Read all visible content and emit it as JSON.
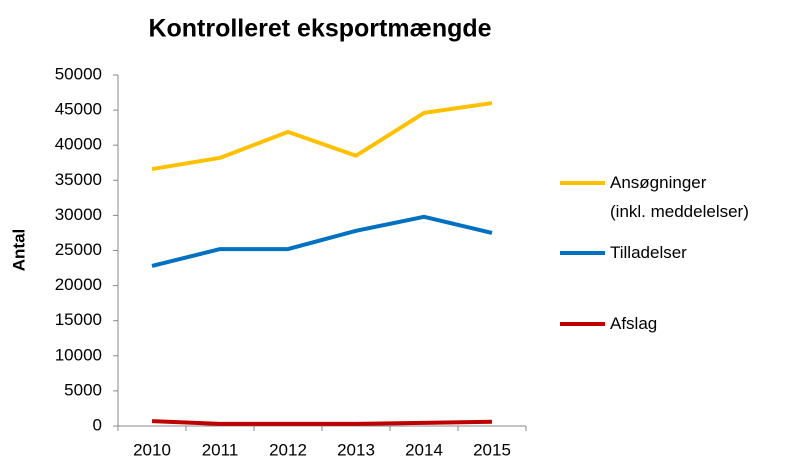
{
  "chart_data": {
    "type": "line",
    "title": "Kontrolleret eksportmængde",
    "y_label": "Antal",
    "categories": [
      "2010",
      "2011",
      "2012",
      "2013",
      "2014",
      "2015"
    ],
    "series": [
      {
        "name": "Ansøgninger\n(inkl. meddelelser)",
        "color": "#ffc000",
        "values": [
          36600,
          38200,
          41900,
          38500,
          44600,
          46000
        ]
      },
      {
        "name": "Tilladelser",
        "color": "#0070c0",
        "values": [
          22800,
          25200,
          25200,
          27800,
          29800,
          27500
        ]
      },
      {
        "name": "Afslag",
        "color": "#c00000",
        "values": [
          700,
          300,
          300,
          300,
          450,
          600
        ]
      }
    ],
    "ylim": [
      0,
      50000
    ],
    "yticks": [
      0,
      5000,
      10000,
      15000,
      20000,
      25000,
      30000,
      35000,
      40000,
      45000,
      50000
    ],
    "grid": false,
    "legend": "right"
  }
}
